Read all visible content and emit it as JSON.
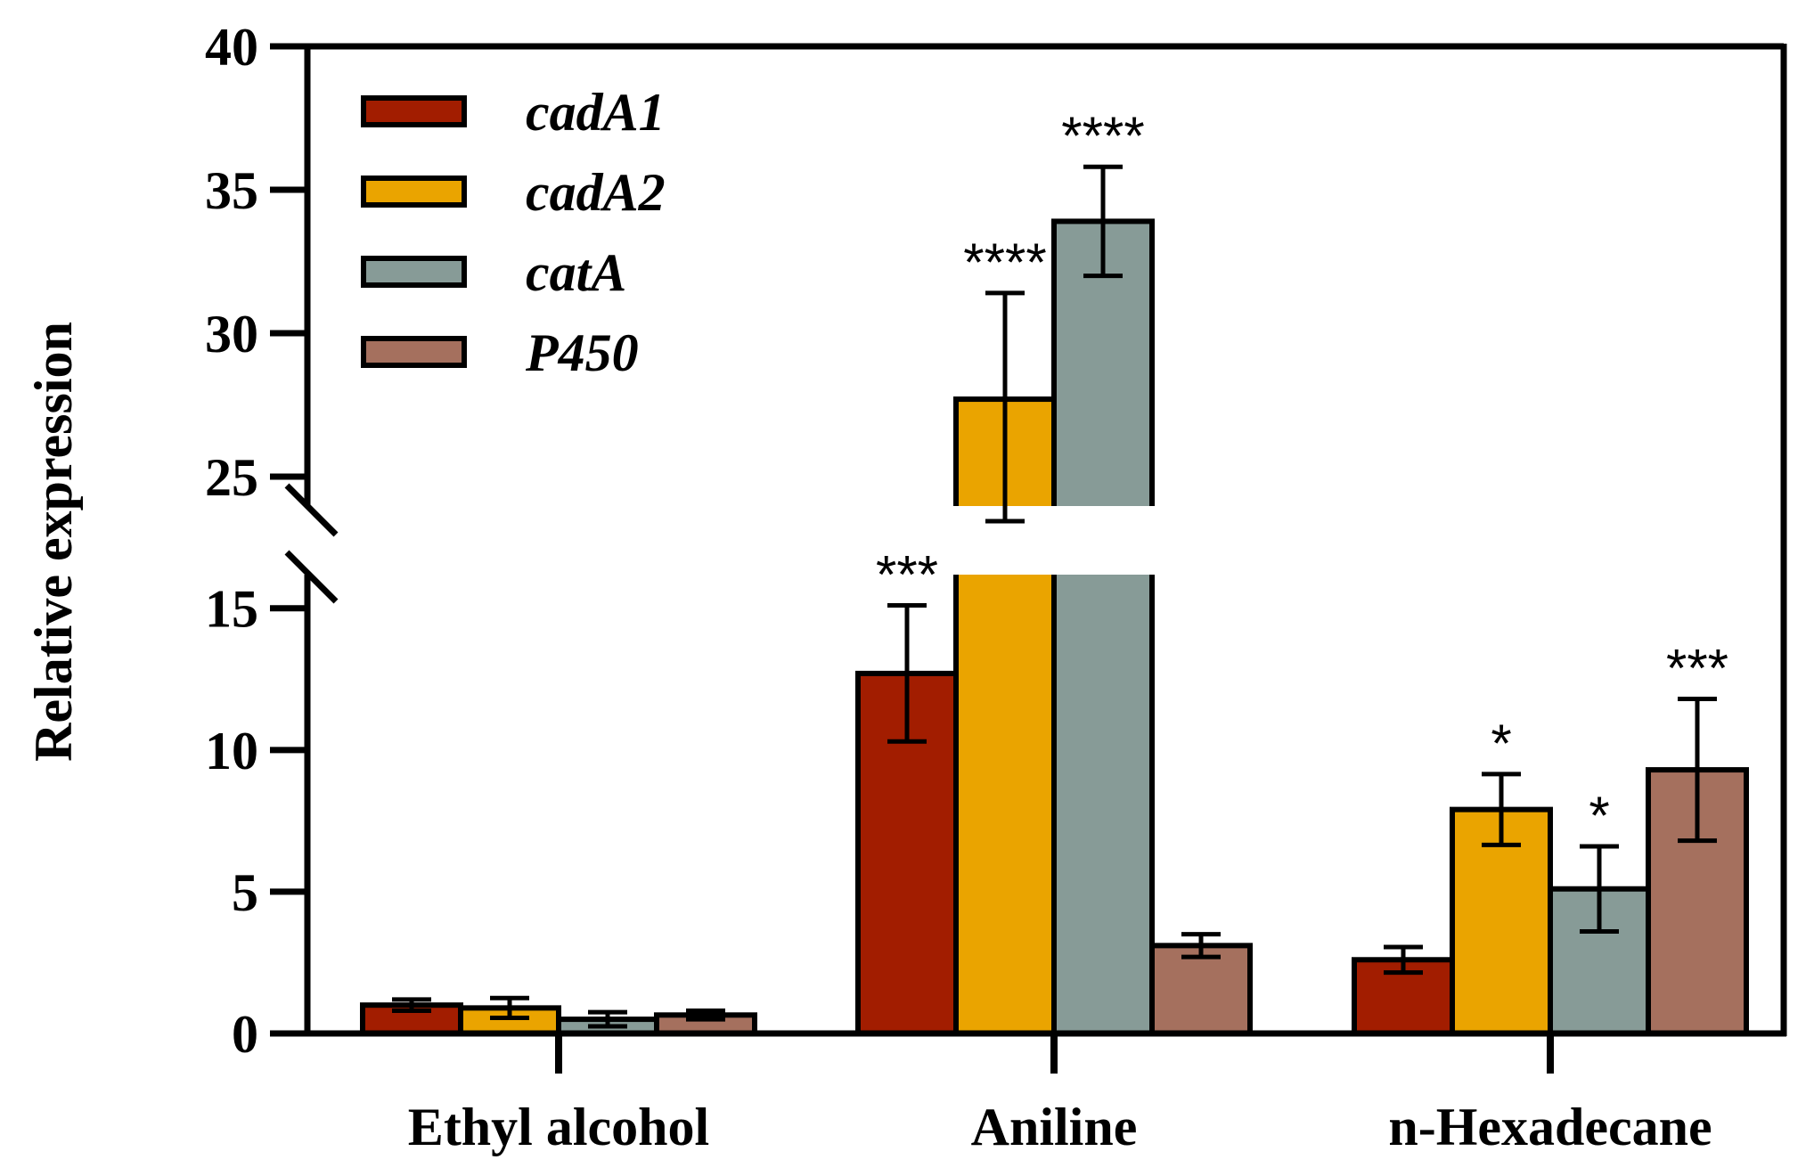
{
  "chart_data": {
    "type": "bar",
    "ylabel": "Relative expression",
    "xlabel": "",
    "categories": [
      "Ethyl alcohol",
      "Aniline",
      "n-Hexadecane"
    ],
    "y_axis_break": [
      16.5,
      25
    ],
    "lower_ylim": [
      0,
      16.5
    ],
    "upper_ylim": [
      25,
      40
    ],
    "lower_ticks": [
      0,
      5,
      10,
      15
    ],
    "upper_ticks": [
      25,
      30,
      35,
      40
    ],
    "legend_position": "top-left",
    "series": [
      {
        "name": "cadA1",
        "color": "#a21d00",
        "values": [
          1.0,
          12.7,
          2.6
        ],
        "errors": [
          0.2,
          2.4,
          0.45
        ],
        "significance": [
          "",
          "***",
          ""
        ]
      },
      {
        "name": "cadA2",
        "color": "#eaa400",
        "values": [
          0.9,
          27.7,
          7.9
        ],
        "errors": [
          0.35,
          3.7,
          1.25
        ],
        "significance": [
          "",
          "****",
          "*"
        ]
      },
      {
        "name": "catA",
        "color": "#879b97",
        "values": [
          0.5,
          33.9,
          5.1
        ],
        "errors": [
          0.25,
          1.9,
          1.5
        ],
        "significance": [
          "",
          "****",
          "*"
        ]
      },
      {
        "name": "P450",
        "color": "#a5705e",
        "values": [
          0.65,
          3.1,
          9.3
        ],
        "errors": [
          0.15,
          0.4,
          2.5
        ],
        "significance": [
          "",
          "",
          "***"
        ]
      }
    ]
  }
}
